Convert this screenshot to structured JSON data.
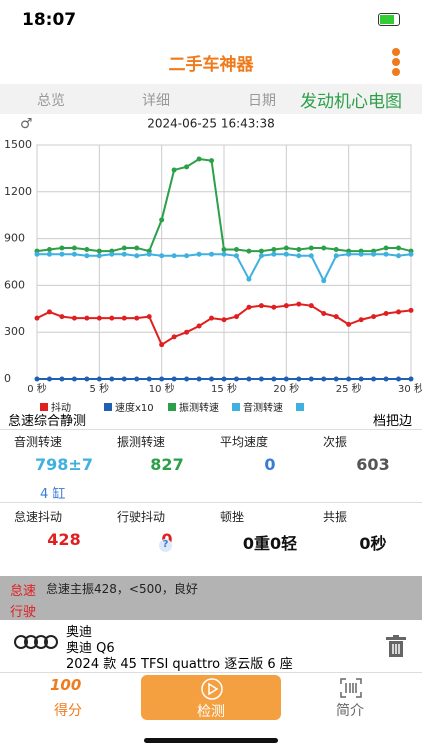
{
  "status": {
    "time": "18:07"
  },
  "header": {
    "title": "二手车神器"
  },
  "tabs": [
    "总览",
    "详细",
    "日期",
    "发动机心电图"
  ],
  "chart": {
    "type": "line",
    "symbol": "♂",
    "timestamp": "2024-06-25 16:43:38",
    "x": [
      0,
      1,
      2,
      3,
      4,
      5,
      6,
      7,
      8,
      9,
      10,
      11,
      12,
      13,
      14,
      15,
      16,
      17,
      18,
      19,
      20,
      21,
      22,
      23,
      24,
      25,
      26,
      27,
      28,
      29,
      30
    ],
    "xlim": [
      0,
      30
    ],
    "xticks": [
      {
        "value": 0,
        "label": "0 秒"
      },
      {
        "value": 5,
        "label": "5 秒"
      },
      {
        "value": 10,
        "label": "10 秒"
      },
      {
        "value": 15,
        "label": "15 秒"
      },
      {
        "value": 20,
        "label": "20 秒"
      },
      {
        "value": 25,
        "label": "25 秒"
      },
      {
        "value": 30,
        "label": "30 秒"
      }
    ],
    "ylim": [
      0,
      1500
    ],
    "yticks": [
      0,
      300,
      600,
      900,
      1200,
      1500
    ],
    "grid": true,
    "series": [
      {
        "name": "抖动",
        "color": "#e02020",
        "values": [
          390,
          430,
          400,
          390,
          390,
          390,
          390,
          390,
          390,
          400,
          220,
          270,
          300,
          340,
          390,
          380,
          400,
          460,
          470,
          460,
          470,
          480,
          470,
          420,
          400,
          350,
          380,
          400,
          420,
          430,
          440
        ]
      },
      {
        "name": "速度x10",
        "color": "#1f5fb4",
        "values": [
          0,
          0,
          0,
          0,
          0,
          0,
          0,
          0,
          0,
          0,
          0,
          0,
          0,
          0,
          0,
          0,
          0,
          0,
          0,
          0,
          0,
          0,
          0,
          0,
          0,
          0,
          0,
          0,
          0,
          0,
          0
        ]
      },
      {
        "name": "振测转速",
        "color": "#2ca048",
        "values": [
          820,
          830,
          840,
          840,
          830,
          820,
          820,
          840,
          840,
          820,
          1020,
          1340,
          1360,
          1410,
          1400,
          830,
          830,
          820,
          820,
          830,
          840,
          830,
          840,
          840,
          830,
          820,
          820,
          820,
          840,
          840,
          820
        ]
      },
      {
        "name": "音测转速",
        "color": "#3fb0e0",
        "values": [
          800,
          800,
          800,
          800,
          790,
          790,
          800,
          800,
          790,
          800,
          790,
          790,
          790,
          800,
          800,
          800,
          790,
          640,
          790,
          800,
          800,
          790,
          790,
          630,
          790,
          800,
          800,
          800,
          800,
          790,
          800
        ]
      }
    ]
  },
  "section": {
    "title": "怠速综合静测",
    "right": "档把边"
  },
  "stats1": [
    {
      "label": "音测转速",
      "value": "798±7"
    },
    {
      "label": "振测转速",
      "value": "827"
    },
    {
      "label": "平均速度",
      "value": "0"
    },
    {
      "label": "次振",
      "value": "603"
    }
  ],
  "cylinders": "4 缸",
  "stats2": [
    {
      "label": "怠速抖动",
      "value": "428"
    },
    {
      "label": "行驶抖动",
      "value": "0"
    },
    {
      "label": "顿挫",
      "value": "0重0轻"
    },
    {
      "label": "共振",
      "value": "0秒"
    }
  ],
  "help": "?",
  "notes": {
    "idle_tag": "怠速",
    "idle_text": "怠速主振428，<500，良好",
    "drive_tag": "行驶"
  },
  "car": {
    "brand": "奥迪",
    "model": "奥迪 Q6",
    "trim": "2024 款 45 TFSI quattro 逐云版 6 座"
  },
  "nav": {
    "badge": "100",
    "score": "得分",
    "detect": "检测",
    "intro": "简介"
  }
}
